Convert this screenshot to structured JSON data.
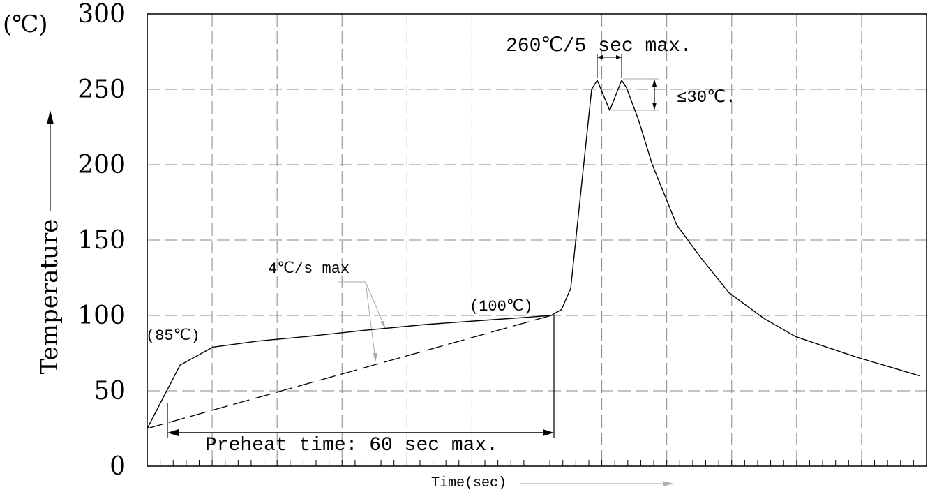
{
  "chart_data": {
    "type": "line",
    "unit_label": "(℃)",
    "ylabel": "Temperature",
    "xlabel": "Time(sec)",
    "ylim": [
      0,
      300
    ],
    "yticks": [
      "0",
      "50",
      "100",
      "150",
      "200",
      "250",
      "300"
    ],
    "grid": true,
    "series": [
      {
        "style": "solid",
        "y": [
          25,
          67,
          79,
          83,
          86,
          90,
          94,
          97,
          99,
          100,
          104,
          118,
          250,
          256,
          236,
          256,
          251,
          230,
          200,
          160,
          138,
          115,
          98,
          86,
          79,
          72,
          60
        ]
      },
      {
        "style": "dashed",
        "y": [
          25,
          100
        ]
      }
    ],
    "annotations": {
      "start_point": "(85℃)",
      "preheat_end_point": "(100℃)",
      "ramp_rate": "4℃/s max",
      "preheat": "Preheat time: 60 sec max.",
      "peak": "260℃/5 sec max.",
      "dip": "≤30℃."
    }
  }
}
